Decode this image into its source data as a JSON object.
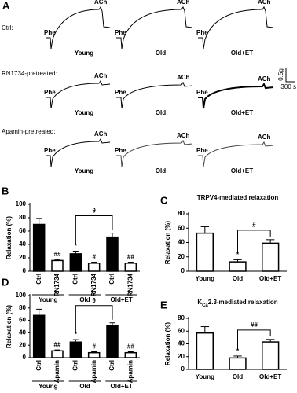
{
  "panel_a": {
    "label": "A",
    "scale_y": "0.5g",
    "scale_x": "300 s",
    "rows": [
      {
        "name": "Ctrl:",
        "traces": [
          {
            "group": "Young",
            "stimuli": [
              "Phe",
              "ACh"
            ]
          },
          {
            "group": "Old",
            "stimuli": [
              "Phe",
              "ACh"
            ]
          },
          {
            "group": "Old+ET",
            "stimuli": [
              "Phe",
              "ACh"
            ]
          }
        ]
      },
      {
        "name": "RN1734-pretreated:",
        "traces": [
          {
            "group": "Young",
            "stimuli": [
              "Phe",
              "ACh"
            ]
          },
          {
            "group": "Old",
            "stimuli": [
              "Phe",
              "ACh"
            ]
          },
          {
            "group": "Old+ET",
            "stimuli": [
              "Phe",
              "ACh"
            ]
          }
        ]
      },
      {
        "name": "Apamin-pretreated:",
        "traces": [
          {
            "group": "Young",
            "stimuli": [
              "Phe",
              "ACh"
            ]
          },
          {
            "group": "Old",
            "stimuli": [
              "Phe",
              "ACh"
            ]
          },
          {
            "group": "Old+ET",
            "stimuli": [
              "Phe",
              "ACh"
            ]
          }
        ]
      }
    ]
  },
  "chart_data": [
    {
      "type": "bar",
      "label": "B",
      "ylabel": "Relaxation (%)",
      "ylim": [
        0,
        100
      ],
      "yticks": [
        0,
        20,
        40,
        60,
        80,
        100
      ],
      "categories": [
        "Ctrl",
        "RN1734",
        "Ctrl",
        "RN1734",
        "Ctrl",
        "RN1734"
      ],
      "groups": [
        "Young",
        "Old",
        "Old+ET"
      ],
      "values": [
        70,
        16,
        26,
        12,
        51,
        12
      ],
      "errors": [
        9,
        1.5,
        4,
        1.5,
        6,
        1.5
      ],
      "colors": [
        "#000000",
        "#ffffff",
        "#000000",
        "#ffffff",
        "#000000",
        "#ffffff"
      ],
      "significance": [
        null,
        "##",
        "*",
        "#",
        null,
        "##"
      ],
      "bracket_label": "θ"
    },
    {
      "type": "bar",
      "label": "C",
      "title": "TRPV4-mediated relaxation",
      "ylabel": "Relaxation (%)",
      "ylim": [
        0,
        80
      ],
      "yticks": [
        0,
        20,
        40,
        60,
        80
      ],
      "categories": [
        "Young",
        "Old",
        "Old+ET"
      ],
      "values": [
        53,
        13,
        39
      ],
      "errors": [
        9,
        3,
        5
      ],
      "colors": [
        "#ffffff",
        "#ffffff",
        "#ffffff"
      ],
      "significance": [
        null,
        "*",
        null
      ],
      "bracket_label": "#"
    },
    {
      "type": "bar",
      "label": "D",
      "ylabel": "Relaxation (%)",
      "ylim": [
        0,
        100
      ],
      "yticks": [
        0,
        20,
        40,
        60,
        80,
        100
      ],
      "categories": [
        "Ctrl",
        "Apamin",
        "Ctrl",
        "Apamin",
        "Ctrl",
        "Apamin"
      ],
      "groups": [
        "Young",
        "Old",
        "Old+ET"
      ],
      "values": [
        68,
        11,
        25,
        8,
        51,
        8
      ],
      "errors": [
        10,
        1.5,
        4,
        1.5,
        5,
        1.5
      ],
      "colors": [
        "#000000",
        "#ffffff",
        "#000000",
        "#ffffff",
        "#000000",
        "#ffffff"
      ],
      "significance": [
        null,
        "##",
        "*",
        "#",
        null,
        "##"
      ],
      "bracket_label": "θ"
    },
    {
      "type": "bar",
      "label": "E",
      "title_parts": [
        "K",
        "Ca",
        "2.3-mediated relaxation"
      ],
      "ylabel": "Relaxation (%)",
      "ylim": [
        0,
        80
      ],
      "yticks": [
        0,
        20,
        40,
        60,
        80
      ],
      "categories": [
        "Young",
        "Old",
        "Old+ET"
      ],
      "values": [
        57,
        18,
        43
      ],
      "errors": [
        10,
        3,
        4
      ],
      "colors": [
        "#ffffff",
        "#ffffff",
        "#ffffff"
      ],
      "significance": [
        null,
        "*",
        null
      ],
      "bracket_label": "##"
    }
  ]
}
